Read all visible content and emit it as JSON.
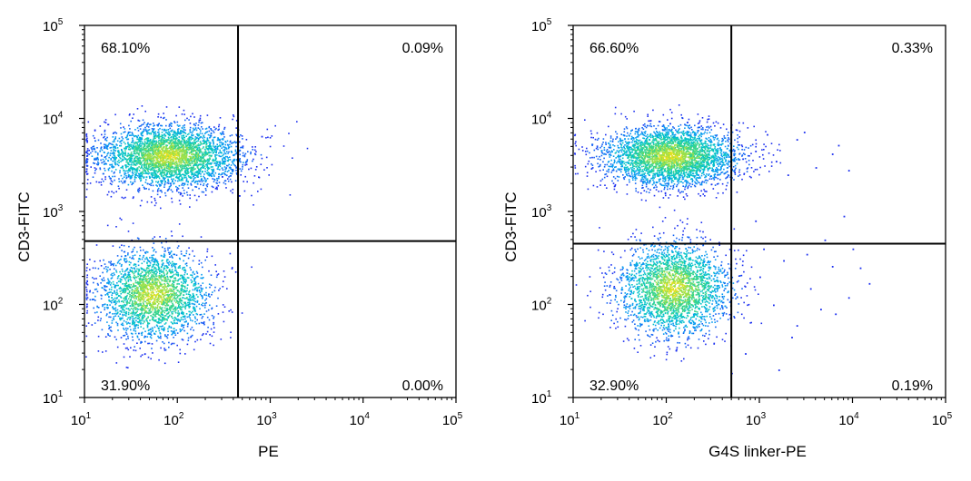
{
  "chart_data": [
    {
      "type": "scatter",
      "subtype": "flow-cytometry-density",
      "xlabel": "PE",
      "ylabel": "CD3-FITC",
      "x_scale": "log",
      "y_scale": "log",
      "xlim": [
        10,
        100000
      ],
      "ylim": [
        10,
        100000
      ],
      "x_ticks": [
        {
          "base": "10",
          "exp": "1"
        },
        {
          "base": "10",
          "exp": "2"
        },
        {
          "base": "10",
          "exp": "3"
        },
        {
          "base": "10",
          "exp": "4"
        },
        {
          "base": "10",
          "exp": "5"
        }
      ],
      "y_ticks": [
        {
          "base": "10",
          "exp": "1"
        },
        {
          "base": "10",
          "exp": "3"
        },
        {
          "base": "10",
          "exp": "2"
        },
        {
          "base": "10",
          "exp": "4"
        },
        {
          "base": "10",
          "exp": "5"
        }
      ],
      "gate": {
        "x": 450,
        "y": 480
      },
      "quadrants": {
        "upper_left": "68.10%",
        "upper_right": "0.09%",
        "lower_left": "31.90%",
        "lower_right": "0.00%"
      },
      "populations": [
        {
          "name_hidden": true,
          "center_x": 80,
          "center_y": 4000,
          "spread_x_decades": 0.38,
          "spread_y_decades": 0.17,
          "count": 3400
        },
        {
          "name_hidden": true,
          "center_x": 55,
          "center_y": 130,
          "spread_x_decades": 0.3,
          "spread_y_decades": 0.24,
          "count": 2400
        }
      ],
      "outliers": [
        [
          300,
          2400
        ],
        [
          800,
          6500
        ],
        [
          460,
          1500
        ]
      ]
    },
    {
      "type": "scatter",
      "subtype": "flow-cytometry-density",
      "xlabel": "G4S linker-PE",
      "ylabel": "CD3-FITC",
      "x_scale": "log",
      "y_scale": "log",
      "xlim": [
        10,
        100000
      ],
      "ylim": [
        10,
        100000
      ],
      "x_ticks": [
        {
          "base": "10",
          "exp": "1"
        },
        {
          "base": "10",
          "exp": "2"
        },
        {
          "base": "10",
          "exp": "3"
        },
        {
          "base": "10",
          "exp": "4"
        },
        {
          "base": "10",
          "exp": "5"
        }
      ],
      "y_ticks": [
        {
          "base": "10",
          "exp": "1"
        },
        {
          "base": "10",
          "exp": "3"
        },
        {
          "base": "10",
          "exp": "2"
        },
        {
          "base": "10",
          "exp": "4"
        },
        {
          "base": "10",
          "exp": "5"
        }
      ],
      "gate": {
        "x": 500,
        "y": 450
      },
      "quadrants": {
        "upper_left": "66.60%",
        "upper_right": "0.33%",
        "lower_left": "32.90%",
        "lower_right": "0.19%"
      },
      "populations": [
        {
          "center_x": 110,
          "center_y": 4000,
          "spread_x_decades": 0.36,
          "spread_y_decades": 0.16,
          "count": 3300
        },
        {
          "center_x": 120,
          "center_y": 150,
          "spread_x_decades": 0.3,
          "spread_y_decades": 0.25,
          "count": 2600
        }
      ],
      "outliers": [
        [
          900,
          4500
        ],
        [
          1500,
          3500
        ],
        [
          2500,
          6000
        ],
        [
          4000,
          3000
        ],
        [
          6000,
          4200
        ],
        [
          9000,
          2800
        ],
        [
          1200,
          6800
        ],
        [
          3000,
          7200
        ],
        [
          2000,
          2500
        ],
        [
          7000,
          5200
        ],
        [
          1000,
          200
        ],
        [
          1800,
          300
        ],
        [
          3500,
          150
        ],
        [
          6000,
          260
        ],
        [
          9000,
          120
        ],
        [
          1400,
          100
        ],
        [
          2500,
          60
        ],
        [
          4500,
          90
        ],
        [
          8000,
          900
        ],
        [
          15000,
          170
        ],
        [
          1100,
          400
        ],
        [
          3200,
          350
        ],
        [
          5000,
          500
        ],
        [
          12000,
          250
        ],
        [
          2200,
          45
        ],
        [
          700,
          30
        ],
        [
          1600,
          20
        ],
        [
          900,
          800
        ],
        [
          6500,
          80
        ],
        [
          10000,
          400
        ]
      ]
    }
  ]
}
